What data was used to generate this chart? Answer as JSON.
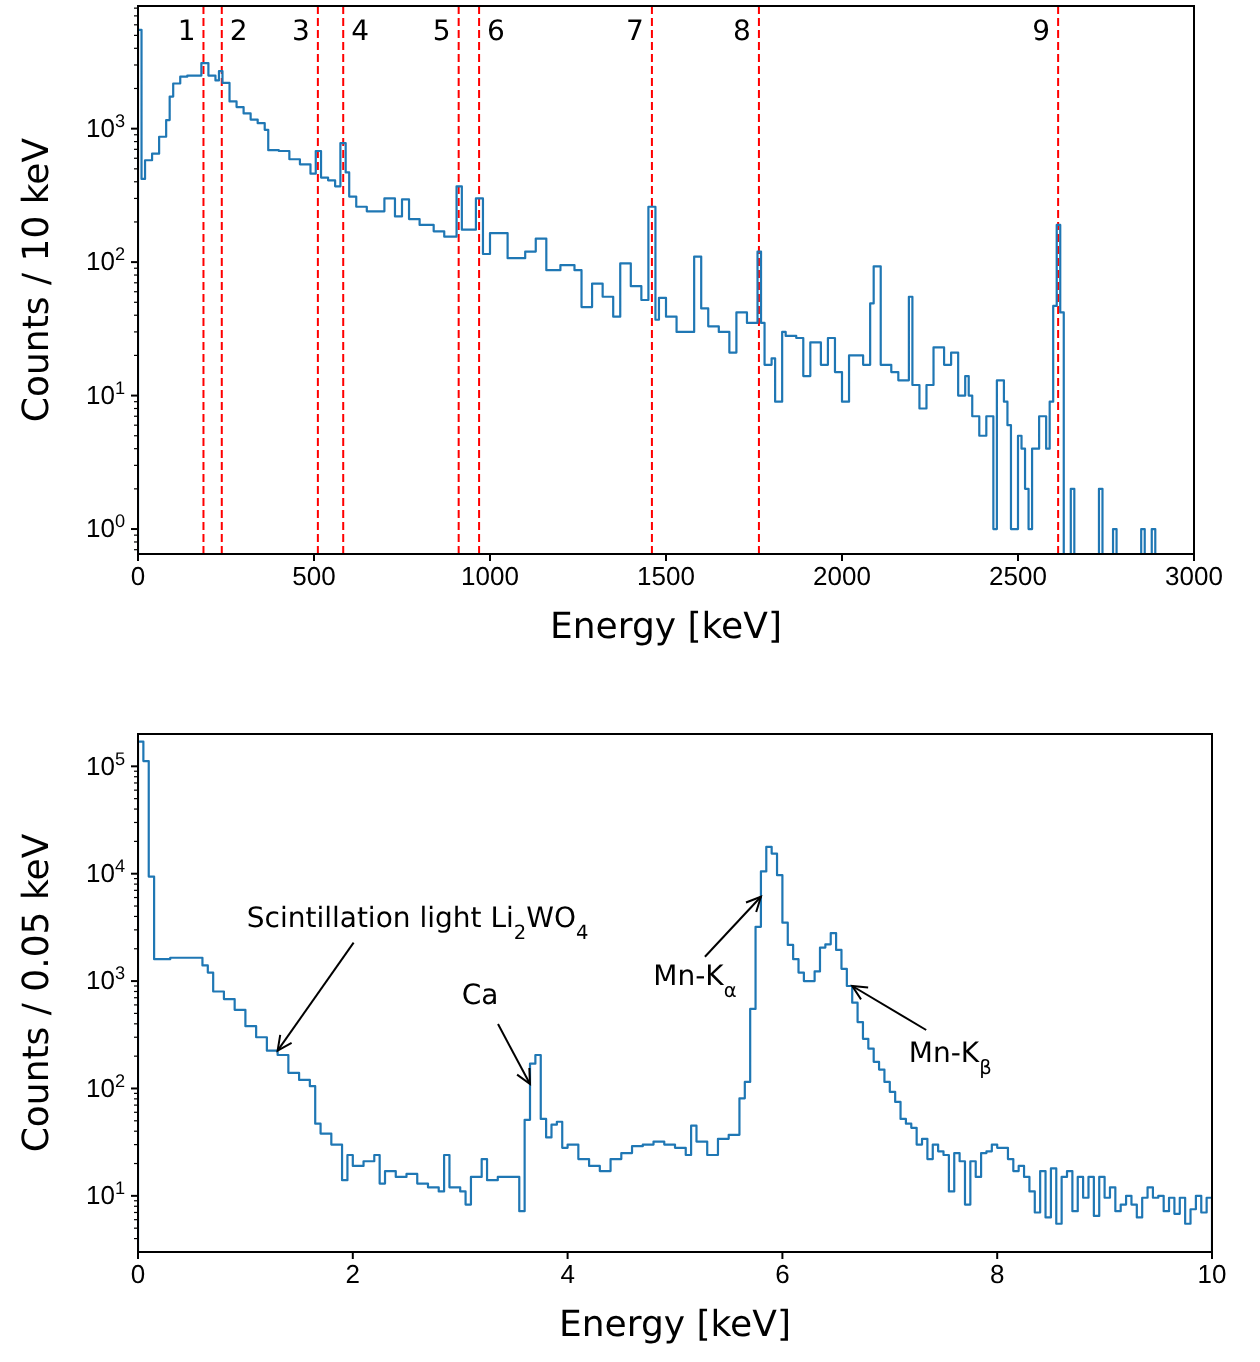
{
  "chart_data": [
    {
      "type": "histogram",
      "xlabel": "Energy [keV]",
      "ylabel": "Counts / 10 keV",
      "color": "#1f77b4",
      "log": true,
      "xlim": [
        0,
        3000
      ],
      "ylim": [
        0.65,
        8300
      ],
      "xticks": [
        0,
        500,
        1000,
        1500,
        2000,
        2500,
        3000
      ],
      "yticks": [
        {
          "value": 1,
          "label": "10$^{0}$"
        },
        {
          "value": 10,
          "label": "10$^{1}$"
        },
        {
          "value": 100,
          "label": "10$^{2}$"
        },
        {
          "value": 1000,
          "label": "10$^{3}$"
        }
      ],
      "bins": [
        0,
        10,
        20,
        40,
        60,
        80,
        90,
        100,
        120,
        140,
        170,
        180,
        200,
        220,
        230,
        240,
        260,
        280,
        300,
        320,
        340,
        360,
        370,
        400,
        430,
        460,
        490,
        505,
        520,
        540,
        560,
        575,
        590,
        600,
        620,
        650,
        700,
        730,
        750,
        770,
        800,
        840,
        870,
        890,
        905,
        920,
        960,
        980,
        1000,
        1050,
        1100,
        1130,
        1160,
        1200,
        1240,
        1260,
        1290,
        1320,
        1350,
        1370,
        1400,
        1430,
        1450,
        1470,
        1480,
        1500,
        1530,
        1560,
        1580,
        1600,
        1620,
        1650,
        1680,
        1700,
        1730,
        1760,
        1770,
        1780,
        1800,
        1810,
        1830,
        1840,
        1870,
        1890,
        1910,
        1940,
        1960,
        1980,
        2000,
        2020,
        2060,
        2080,
        2090,
        2110,
        2140,
        2160,
        2190,
        2200,
        2220,
        2240,
        2260,
        2290,
        2310,
        2330,
        2350,
        2360,
        2370,
        2390,
        2410,
        2430,
        2440,
        2460,
        2470,
        2480,
        2500,
        2510,
        2520,
        2530,
        2540,
        2560,
        2580,
        2590,
        2600,
        2610,
        2620,
        2630,
        2650,
        2660,
        2730,
        2740,
        2770,
        2780,
        2850,
        2860,
        2880,
        2890
      ],
      "values": [
        5500,
        420,
        580,
        650,
        870,
        1160,
        1740,
        2180,
        2450,
        2500,
        2500,
        3100,
        2500,
        2300,
        2700,
        2200,
        1600,
        1450,
        1300,
        1170,
        1100,
        980,
        690,
        680,
        590,
        540,
        460,
        680,
        430,
        410,
        370,
        780,
        470,
        310,
        260,
        240,
        300,
        220,
        295,
        210,
        190,
        170,
        155,
        155,
        370,
        175,
        300,
        115,
        165,
        107,
        120,
        150,
        87,
        95,
        87,
        46,
        69,
        55,
        39,
        98,
        66,
        52,
        260,
        37,
        54,
        39,
        30,
        30,
        110,
        45,
        33,
        30,
        21,
        42,
        35,
        120,
        35,
        17,
        19,
        9,
        30,
        28,
        27,
        14,
        25,
        17,
        27,
        15,
        9,
        20,
        17,
        49,
        93,
        17,
        15,
        13,
        55,
        12,
        8,
        12,
        23,
        17,
        21,
        10,
        14,
        10,
        7,
        5,
        7,
        1,
        13,
        9,
        6,
        1,
        5,
        4,
        2,
        1,
        4,
        7,
        4,
        9,
        47,
        190,
        42,
        null,
        2,
        null,
        2,
        null,
        1,
        null,
        1,
        null,
        1
      ],
      "ref_lines": [
        {
          "axis": "x",
          "value": 186,
          "color": "#ff0000",
          "line_style": "dashed"
        },
        {
          "axis": "x",
          "value": 238,
          "color": "#ff0000",
          "line_style": "dashed"
        },
        {
          "axis": "x",
          "value": 511,
          "color": "#ff0000",
          "line_style": "dashed"
        },
        {
          "axis": "x",
          "value": 583,
          "color": "#ff0000",
          "line_style": "dashed"
        },
        {
          "axis": "x",
          "value": 911,
          "color": "#ff0000",
          "line_style": "dashed"
        },
        {
          "axis": "x",
          "value": 969,
          "color": "#ff0000",
          "line_style": "dashed"
        },
        {
          "axis": "x",
          "value": 1460,
          "color": "#ff0000",
          "line_style": "dashed"
        },
        {
          "axis": "x",
          "value": 1764,
          "color": "#ff0000",
          "line_style": "dashed"
        },
        {
          "axis": "x",
          "value": 2614,
          "color": "#ff0000",
          "line_style": "dashed"
        }
      ],
      "annotations": [
        {
          "text": "1",
          "x": 186
        },
        {
          "text": "2",
          "x": 238
        },
        {
          "text": "3",
          "x": 511
        },
        {
          "text": "4",
          "x": 583
        },
        {
          "text": "5",
          "x": 911
        },
        {
          "text": "6",
          "x": 969
        },
        {
          "text": "7",
          "x": 1460
        },
        {
          "text": "8",
          "x": 1764
        },
        {
          "text": "9",
          "x": 2614
        }
      ]
    },
    {
      "type": "histogram",
      "xlabel": "Energy [keV]",
      "ylabel": "Counts / 0.05 keV",
      "color": "#1f77b4",
      "log": true,
      "xlim": [
        0,
        10
      ],
      "ylim": [
        3,
        200000
      ],
      "xticks": [
        0,
        2,
        4,
        6,
        8,
        10
      ],
      "yticks": [
        {
          "value": 10,
          "label": "10$^{1}$"
        },
        {
          "value": 100,
          "label": "10$^{2}$"
        },
        {
          "value": 1000,
          "label": "10$^{3}$"
        },
        {
          "value": 10000,
          "label": "10$^{4}$"
        },
        {
          "value": 100000,
          "label": "10$^{5}$"
        }
      ],
      "bins": [
        0,
        0.05,
        0.1,
        0.15,
        0.3,
        0.6,
        0.65,
        0.7,
        0.8,
        0.9,
        1.0,
        1.1,
        1.2,
        1.3,
        1.4,
        1.5,
        1.6,
        1.65,
        1.7,
        1.8,
        1.9,
        1.95,
        2.0,
        2.1,
        2.2,
        2.25,
        2.3,
        2.4,
        2.5,
        2.6,
        2.7,
        2.8,
        2.85,
        2.9,
        3.0,
        3.05,
        3.1,
        3.2,
        3.25,
        3.35,
        3.55,
        3.6,
        3.65,
        3.7,
        3.75,
        3.8,
        3.85,
        3.9,
        3.95,
        4.0,
        4.1,
        4.2,
        4.3,
        4.4,
        4.5,
        4.6,
        4.7,
        4.8,
        4.9,
        5.0,
        5.1,
        5.15,
        5.2,
        5.3,
        5.4,
        5.5,
        5.6,
        5.65,
        5.7,
        5.75,
        5.8,
        5.85,
        5.9,
        5.95,
        6.0,
        6.05,
        6.1,
        6.15,
        6.2,
        6.25,
        6.3,
        6.35,
        6.4,
        6.45,
        6.5,
        6.55,
        6.6,
        6.65,
        6.7,
        6.75,
        6.8,
        6.85,
        6.9,
        6.95,
        7.0,
        7.05,
        7.1,
        7.15,
        7.2,
        7.25,
        7.3,
        7.35,
        7.4,
        7.45,
        7.5,
        7.55,
        7.6,
        7.65,
        7.7,
        7.75,
        7.8,
        7.85,
        7.9,
        7.95,
        8.0,
        8.1,
        8.15,
        8.2,
        8.25,
        8.3,
        8.35,
        8.4,
        8.45,
        8.5,
        8.55,
        8.6,
        8.65,
        8.7,
        8.75,
        8.8,
        8.85,
        8.9,
        8.95,
        9.0,
        9.05,
        9.1,
        9.15,
        9.2,
        9.25,
        9.3,
        9.35,
        9.4,
        9.45,
        9.5,
        9.55,
        9.6,
        9.65,
        9.7,
        9.75,
        9.8,
        9.85,
        9.9,
        9.95,
        10.0
      ],
      "values": [
        170000,
        112000,
        9400,
        1600,
        1650,
        1400,
        1200,
        800,
        680,
        540,
        380,
        300,
        225,
        205,
        140,
        120,
        105,
        47,
        38,
        30,
        14,
        24,
        19,
        21,
        24,
        13,
        17,
        15,
        16,
        13,
        12,
        11,
        24,
        12,
        11,
        8.3,
        15,
        22,
        14,
        15,
        7.2,
        51,
        170,
        205,
        52,
        35,
        46,
        49,
        28,
        30,
        22,
        19,
        17,
        22,
        25,
        29,
        30,
        32,
        30,
        28,
        24,
        45,
        32,
        24,
        34,
        37,
        81,
        115,
        550,
        3200,
        10500,
        17800,
        15400,
        9700,
        3500,
        2170,
        1600,
        1200,
        1000,
        1000,
        1230,
        2050,
        2200,
        2800,
        1950,
        1300,
        900,
        630,
        415,
        290,
        235,
        177,
        150,
        115,
        93,
        75,
        52,
        47,
        43,
        30,
        34,
        22,
        30,
        26,
        24,
        11,
        25,
        21,
        8.3,
        21,
        15,
        25,
        26,
        30,
        28,
        22,
        17,
        19,
        15,
        11,
        7,
        17,
        6.3,
        18,
        5.5,
        15,
        17,
        7.2,
        15,
        9.6,
        15,
        6.5,
        15,
        9.6,
        12,
        7.2,
        8.3,
        10,
        8.3,
        6.3,
        9.6,
        12,
        9.6,
        10,
        7.2,
        9.6,
        6.8,
        9.6,
        5.5,
        7.5,
        10,
        7,
        9.6
      ],
      "annotations": [
        {
          "text": "Scintillation light Li$_{2}$WO$_{4}$",
          "x": 1.3,
          "y": 225
        },
        {
          "text": "Ca",
          "x": 3.65,
          "y": 110
        },
        {
          "text": "Mn-K$_{α}$",
          "x": 5.8,
          "y": 6100
        },
        {
          "text": "Mn-K$_{β}$",
          "x": 6.65,
          "y": 900
        }
      ]
    }
  ]
}
